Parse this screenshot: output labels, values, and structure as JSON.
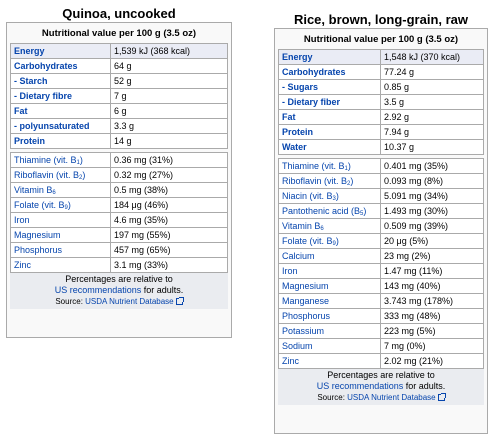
{
  "quinoa": {
    "title": "Quinoa, uncooked",
    "header": "Nutritional value per 100 g (3.5 oz)",
    "groups": [
      [
        {
          "name": "Energy",
          "val": "1,539 kJ (368 kcal)",
          "bold": true,
          "shade": true
        },
        {
          "name": "Carbohydrates",
          "val": "64 g",
          "bold": true
        },
        {
          "name": "- Starch",
          "val": "52 g",
          "bold": true
        },
        {
          "name": "- Dietary fibre",
          "val": "7 g",
          "bold": true
        },
        {
          "name": "Fat",
          "val": "6 g",
          "bold": true
        },
        {
          "name": "- polyunsaturated",
          "val": "3.3 g",
          "bold": true
        },
        {
          "name": "Protein",
          "val": "14 g",
          "bold": true
        }
      ],
      [
        {
          "name": "Thiamine (vit. B",
          "sub": "1",
          "tail": ")",
          "val": "0.36 mg (31%)"
        },
        {
          "name": "Riboflavin (vit. B",
          "sub": "2",
          "tail": ")",
          "val": "0.32 mg (27%)"
        },
        {
          "name": "Vitamin B",
          "sub": "6",
          "tail": "",
          "val": "0.5 mg (38%)"
        },
        {
          "name": "Folate (vit. B",
          "sub": "9",
          "tail": ")",
          "val": "184 μg (46%)"
        },
        {
          "name": "Iron",
          "val": "4.6 mg (35%)"
        },
        {
          "name": "Magnesium",
          "val": "197 mg (55%)"
        },
        {
          "name": "Phosphorus",
          "val": "457 mg (65%)"
        },
        {
          "name": "Zinc",
          "val": "3.1 mg (33%)"
        }
      ]
    ],
    "footer": {
      "line1": "Percentages are relative to",
      "link": "US recommendations",
      "line2_tail": " for adults.",
      "source_prefix": "Source: ",
      "source_link": "USDA Nutrient Database"
    }
  },
  "rice": {
    "title": "Rice, brown, long-grain, raw",
    "header": "Nutritional value per 100 g (3.5 oz)",
    "groups": [
      [
        {
          "name": "Energy",
          "val": "1,548 kJ (370 kcal)",
          "bold": true,
          "shade": true
        },
        {
          "name": "Carbohydrates",
          "val": "77.24 g",
          "bold": true
        },
        {
          "name": "- Sugars",
          "val": "0.85 g",
          "bold": true
        },
        {
          "name": "- Dietary fiber",
          "val": "3.5 g",
          "bold": true
        },
        {
          "name": "Fat",
          "val": "2.92 g",
          "bold": true
        },
        {
          "name": "Protein",
          "val": "7.94 g",
          "bold": true
        },
        {
          "name": "Water",
          "val": "10.37 g",
          "bold": true
        }
      ],
      [
        {
          "name": "Thiamine (vit. B",
          "sub": "1",
          "tail": ")",
          "val": "0.401 mg (35%)"
        },
        {
          "name": "Riboflavin (vit. B",
          "sub": "2",
          "tail": ")",
          "val": "0.093 mg (8%)"
        },
        {
          "name": "Niacin (vit. B",
          "sub": "3",
          "tail": ")",
          "val": "5.091 mg (34%)"
        },
        {
          "name": "Pantothenic acid (B",
          "sub": "5",
          "tail": ")",
          "val": "1.493 mg (30%)"
        },
        {
          "name": "Vitamin B",
          "sub": "6",
          "tail": "",
          "val": "0.509 mg (39%)"
        },
        {
          "name": "Folate (vit. B",
          "sub": "9",
          "tail": ")",
          "val": "20 μg (5%)"
        },
        {
          "name": "Calcium",
          "val": "23 mg (2%)"
        },
        {
          "name": "Iron",
          "val": "1.47 mg (11%)"
        },
        {
          "name": "Magnesium",
          "val": "143 mg (40%)"
        },
        {
          "name": "Manganese",
          "val": "3.743 mg (178%)"
        },
        {
          "name": "Phosphorus",
          "val": "333 mg (48%)"
        },
        {
          "name": "Potassium",
          "val": "223 mg (5%)"
        },
        {
          "name": "Sodium",
          "val": "7 mg (0%)"
        },
        {
          "name": "Zinc",
          "val": "2.02 mg (21%)"
        }
      ]
    ],
    "footer": {
      "line1": "Percentages are relative to",
      "link": "US recommendations",
      "line2_tail": " for adults.",
      "source_prefix": "Source: ",
      "source_link": "USDA Nutrient Database"
    }
  }
}
